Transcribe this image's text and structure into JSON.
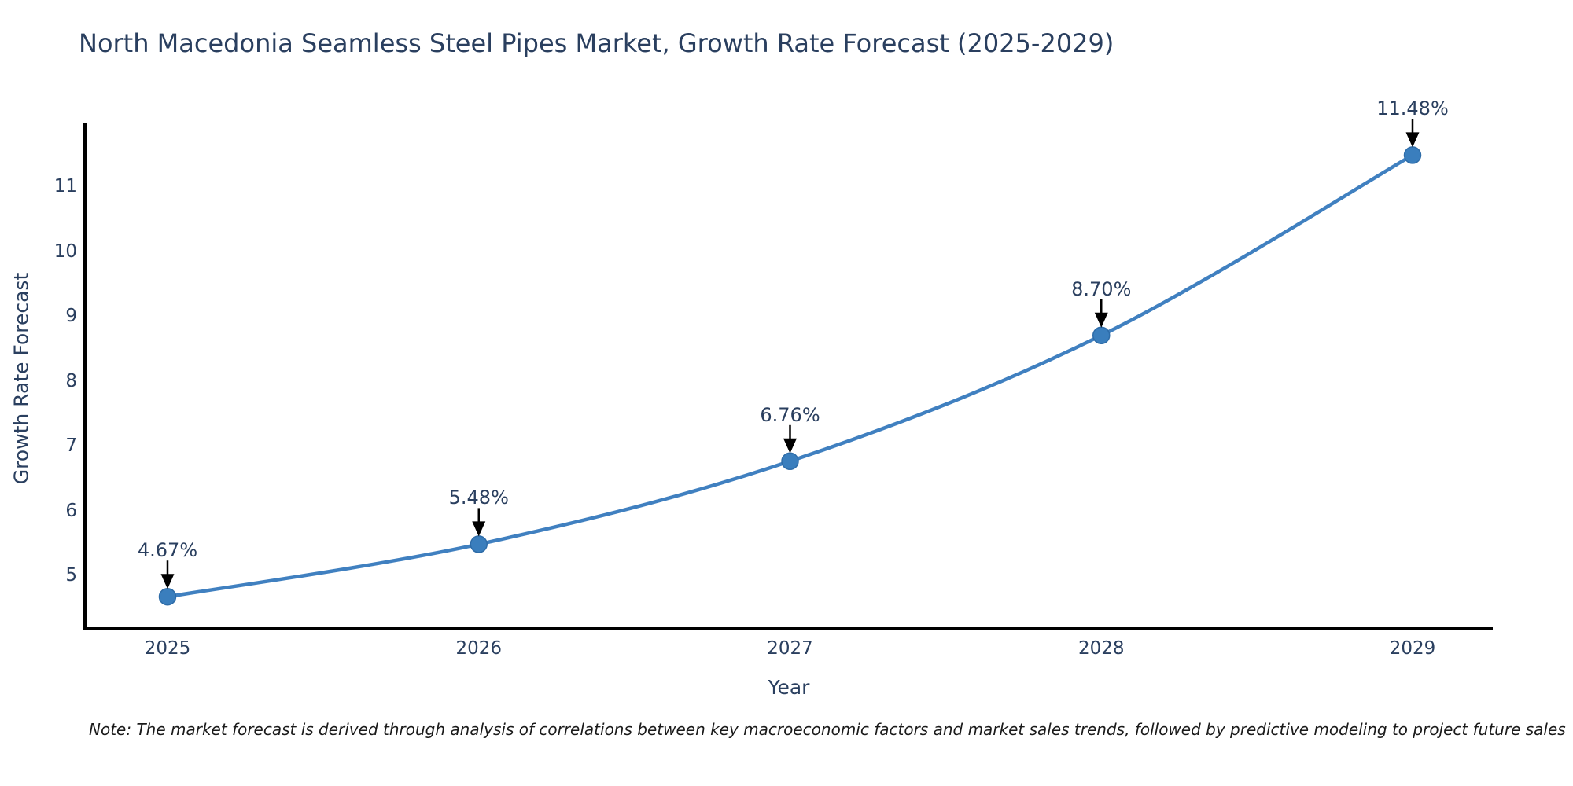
{
  "title": "North Macedonia Seamless Steel Pipes Market, Growth Rate Forecast (2025-2029)",
  "note": "Note: The market forecast is derived through analysis of correlations between key macroeconomic factors and market sales trends, followed by predictive modeling to project future sales",
  "chart_data": {
    "type": "line",
    "title": "North Macedonia Seamless Steel Pipes Market, Growth Rate Forecast (2025-2029)",
    "x": [
      2025,
      2026,
      2027,
      2028,
      2029
    ],
    "values": [
      4.67,
      5.48,
      6.76,
      8.7,
      11.48
    ],
    "point_labels": [
      "4.67%",
      "5.48%",
      "6.76%",
      "8.70%",
      "11.48%"
    ],
    "xticks": [
      "2025",
      "2026",
      "2027",
      "2028",
      "2029"
    ],
    "yticks": [
      5,
      6,
      7,
      8,
      9,
      10,
      11
    ],
    "xlabel": "Year",
    "ylabel": "Growth Rate Forecast",
    "ylim": [
      4.2,
      11.85
    ],
    "grid": false,
    "legend_position": "none",
    "line_style": "smooth-spline",
    "marker": "circle",
    "annotation_arrows": true,
    "colors": {
      "line": "#4080c0",
      "marker_fill": "#3a7ebd",
      "marker_edge": "#2e6ca8",
      "text": "#2a3f5f",
      "axis": "#000000",
      "arrow": "#000000",
      "background": "#ffffff"
    }
  }
}
